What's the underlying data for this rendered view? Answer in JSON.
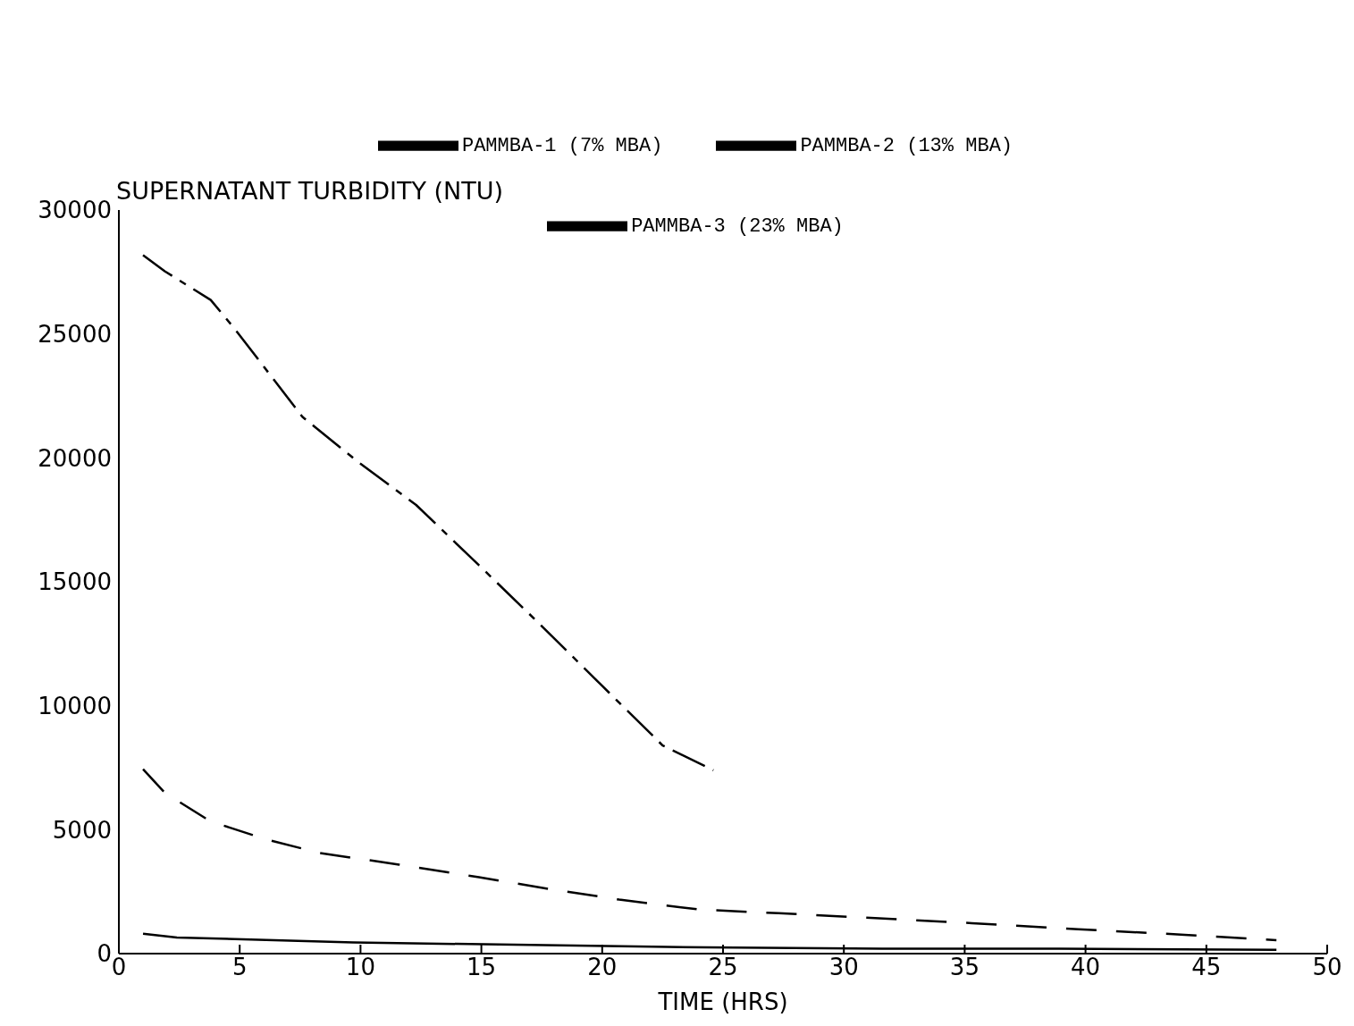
{
  "chart_data": {
    "type": "line",
    "ylabel": "SUPERNATANT TURBIDITY  (NTU)",
    "xlabel": "TIME (HRS)",
    "xlim": [
      0,
      50
    ],
    "xticks": [
      0,
      5,
      10,
      15,
      20,
      25,
      30,
      35,
      40,
      45,
      50
    ],
    "ylim": [
      0,
      30000
    ],
    "yticks": [
      0,
      5000,
      10000,
      15000,
      20000,
      25000,
      30000
    ],
    "legend": "top",
    "marker": "none",
    "series": [
      {
        "name": "PAMMBA-1 (7% MBA)",
        "color": "#000000",
        "line_style": "solid",
        "x": [
          1.0,
          2.4,
          6.1,
          9.7,
          17,
          24.3,
          31.6,
          38.9,
          47.9
        ],
        "values": [
          800,
          650,
          550,
          450,
          350,
          250,
          200,
          200,
          150
        ]
      },
      {
        "name": "PAMMBA-2 (13% MBA)",
        "color": "#000000",
        "line_style": "dashed",
        "x": [
          1.0,
          1.9,
          3.8,
          6.1,
          8.3,
          11.6,
          14.9,
          17.8,
          20.7,
          24,
          27.3,
          30.9,
          35.3,
          39.7,
          44.1,
          47.9
        ],
        "values": [
          7440,
          6490,
          5330,
          4610,
          4060,
          3590,
          3080,
          2610,
          2180,
          1780,
          1630,
          1450,
          1230,
          980,
          760,
          540
        ]
      },
      {
        "name": "PAMMBA-3 (23% MBA)",
        "color": "#000000",
        "line_style": "dashdot",
        "x": [
          1.0,
          1.9,
          3.8,
          4.8,
          7.6,
          9.9,
          12.3,
          14.9,
          17.4,
          20,
          22.5,
          24.6
        ],
        "values": [
          28180,
          27530,
          26370,
          25200,
          21650,
          19840,
          18100,
          15670,
          13310,
          10800,
          8400,
          7400
        ]
      }
    ]
  }
}
